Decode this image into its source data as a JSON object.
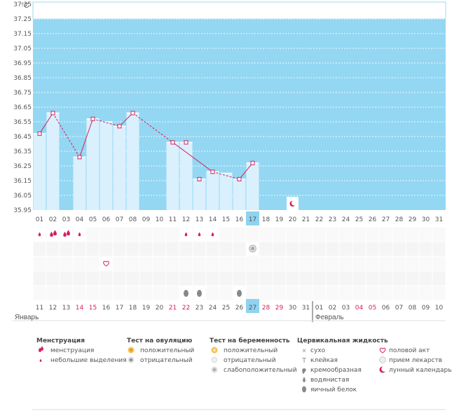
{
  "chart_data": {
    "type": "bar",
    "unit_label": "°C",
    "y_ticks": [
      "37.35",
      "37.25",
      "37.15",
      "37.05",
      "36.95",
      "36.85",
      "36.75",
      "36.65",
      "36.55",
      "36.45",
      "36.35",
      "36.25",
      "36.15",
      "36.05",
      "35.95"
    ],
    "ylim": [
      35.95,
      37.35
    ],
    "day_labels": [
      "01",
      "02",
      "03",
      "04",
      "05",
      "06",
      "07",
      "08",
      "09",
      "10",
      "11",
      "12",
      "13",
      "14",
      "15",
      "16",
      "17",
      "18",
      "19",
      "20",
      "21",
      "22",
      "23",
      "24",
      "25",
      "26",
      "27",
      "28",
      "29",
      "30",
      "31"
    ],
    "highlight_day": "17",
    "values": [
      36.47,
      36.61,
      null,
      36.31,
      36.57,
      null,
      36.52,
      36.61,
      null,
      null,
      36.41,
      36.41,
      36.16,
      36.21,
      null,
      36.16,
      36.27
    ],
    "bar_values": [
      36.47,
      36.61,
      null,
      36.31,
      36.57,
      36.55,
      36.52,
      36.61,
      null,
      null,
      36.41,
      36.41,
      36.16,
      36.21,
      36.2,
      36.16,
      36.27
    ],
    "line_segments": [
      {
        "from": 1,
        "to": 2,
        "style": "solid"
      },
      {
        "from": 2,
        "to": 4,
        "style": "dashed"
      },
      {
        "from": 4,
        "to": 5,
        "style": "solid"
      },
      {
        "from": 5,
        "to": 7,
        "style": "dashed"
      },
      {
        "from": 7,
        "to": 8,
        "style": "solid"
      },
      {
        "from": 8,
        "to": 11,
        "style": "dashed"
      },
      {
        "from": 11,
        "to": 14,
        "style": "solid"
      },
      {
        "from": 14,
        "to": 16,
        "style": "dashed"
      },
      {
        "from": 16,
        "to": 17,
        "style": "solid"
      }
    ],
    "moon_marker_day": 20,
    "menstruation": [
      {
        "day": 1,
        "type": "light"
      },
      {
        "day": 2,
        "type": "heavy"
      },
      {
        "day": 3,
        "type": "heavy"
      },
      {
        "day": 4,
        "type": "light"
      },
      {
        "day": 12,
        "type": "light"
      },
      {
        "day": 13,
        "type": "light"
      },
      {
        "day": 14,
        "type": "light"
      }
    ],
    "pregnancy_test": [
      {
        "day": 17,
        "type": "weak"
      }
    ],
    "sex_days": [
      6
    ],
    "mucus": [
      {
        "day": 12
      },
      {
        "day": 13
      },
      {
        "day": 16
      }
    ],
    "cycle_dates": [
      {
        "label": "11",
        "color": "normal"
      },
      {
        "label": "12",
        "color": "normal"
      },
      {
        "label": "13",
        "color": "normal"
      },
      {
        "label": "14",
        "color": "red"
      },
      {
        "label": "15",
        "color": "red"
      },
      {
        "label": "16",
        "color": "normal"
      },
      {
        "label": "17",
        "color": "normal"
      },
      {
        "label": "18",
        "color": "normal"
      },
      {
        "label": "19",
        "color": "normal"
      },
      {
        "label": "20",
        "color": "normal"
      },
      {
        "label": "21",
        "color": "red"
      },
      {
        "label": "22",
        "color": "red"
      },
      {
        "label": "23",
        "color": "normal"
      },
      {
        "label": "24",
        "color": "normal"
      },
      {
        "label": "25",
        "color": "normal"
      },
      {
        "label": "26",
        "color": "normal"
      },
      {
        "label": "27",
        "color": "highlight"
      },
      {
        "label": "28",
        "color": "red"
      },
      {
        "label": "29",
        "color": "red"
      },
      {
        "label": "30",
        "color": "normal"
      },
      {
        "label": "31",
        "color": "normal"
      },
      {
        "label": "01",
        "color": "normal"
      },
      {
        "label": "02",
        "color": "normal"
      },
      {
        "label": "03",
        "color": "normal"
      },
      {
        "label": "04",
        "color": "red"
      },
      {
        "label": "05",
        "color": "red"
      },
      {
        "label": "06",
        "color": "normal"
      },
      {
        "label": "07",
        "color": "normal"
      },
      {
        "label": "08",
        "color": "normal"
      },
      {
        "label": "09",
        "color": "normal"
      },
      {
        "label": "10",
        "color": "normal"
      }
    ],
    "month_labels": [
      "Январь",
      "Февраль"
    ],
    "colors": {
      "chart_bg": "#94d7f3",
      "bar_fill": "#daf0fd",
      "bar_edge": "#bfe3f6",
      "line": "#d51f5c",
      "highlight": "#8fd3f0",
      "red_text": "#d51f5c"
    }
  },
  "legend": {
    "menstruation": {
      "title": "Менструация",
      "items": [
        "менструация",
        "небольшие выделения"
      ]
    },
    "ovulation": {
      "title": "Тест на овуляцию",
      "items": [
        "положительный",
        "отрицательный"
      ]
    },
    "pregnancy": {
      "title": "Тест на беременность",
      "items": [
        "положительный",
        "отрицательный",
        "слабоположительный"
      ]
    },
    "mucus": {
      "title": "Цервикальная жидкость",
      "items": [
        "сухо",
        "клейкая",
        "кремообразная",
        "водянистая",
        "яичный белок"
      ]
    },
    "other": {
      "items": [
        "половой акт",
        "прием лекарств",
        "лунный календарь"
      ]
    }
  }
}
